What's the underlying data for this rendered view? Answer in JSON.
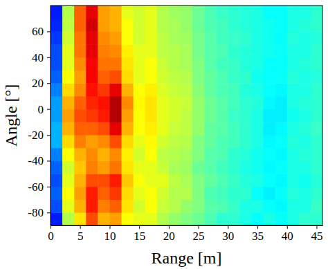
{
  "chart_data": {
    "type": "heatmap",
    "x_label": "Range [m]",
    "y_label": "Angle [°]",
    "xlim": [
      0,
      46
    ],
    "ylim": [
      -90,
      80
    ],
    "xticks": [
      0,
      5,
      10,
      15,
      20,
      25,
      30,
      35,
      40,
      45
    ],
    "yticks": [
      -80,
      -60,
      -40,
      -20,
      0,
      20,
      40,
      60
    ],
    "color": "jet",
    "zlim": [
      0,
      1
    ],
    "x_edges": [
      0,
      2,
      4,
      6,
      8,
      10,
      12,
      14,
      16,
      18,
      20,
      22,
      24,
      26,
      28,
      30,
      32,
      34,
      36,
      38,
      40,
      42,
      44,
      46
    ],
    "y_edges": [
      -90,
      -80,
      -70,
      -60,
      -50,
      -40,
      -30,
      -20,
      -10,
      0,
      10,
      20,
      30,
      40,
      50,
      60,
      70,
      80
    ],
    "cells": [
      [
        0.15,
        0.55,
        0.65,
        0.8,
        0.7,
        0.72,
        0.62,
        0.6,
        0.6,
        0.55,
        0.52,
        0.5,
        0.48,
        0.45,
        0.42,
        0.42,
        0.4,
        0.38,
        0.4,
        0.38,
        0.4,
        0.42,
        0.42
      ],
      [
        0.2,
        0.6,
        0.7,
        0.85,
        0.75,
        0.78,
        0.65,
        0.58,
        0.62,
        0.57,
        0.55,
        0.52,
        0.5,
        0.46,
        0.45,
        0.43,
        0.4,
        0.4,
        0.38,
        0.37,
        0.4,
        0.4,
        0.43
      ],
      [
        0.22,
        0.62,
        0.72,
        0.85,
        0.78,
        0.82,
        0.66,
        0.6,
        0.62,
        0.58,
        0.55,
        0.55,
        0.5,
        0.45,
        0.44,
        0.42,
        0.42,
        0.38,
        0.36,
        0.38,
        0.41,
        0.4,
        0.42
      ],
      [
        0.2,
        0.6,
        0.7,
        0.8,
        0.8,
        0.85,
        0.68,
        0.62,
        0.6,
        0.6,
        0.56,
        0.54,
        0.5,
        0.47,
        0.45,
        0.43,
        0.41,
        0.4,
        0.38,
        0.37,
        0.4,
        0.39,
        0.41
      ],
      [
        0.22,
        0.58,
        0.68,
        0.75,
        0.72,
        0.76,
        0.65,
        0.6,
        0.6,
        0.57,
        0.54,
        0.53,
        0.48,
        0.46,
        0.44,
        0.42,
        0.4,
        0.39,
        0.37,
        0.38,
        0.4,
        0.4,
        0.42
      ],
      [
        0.25,
        0.62,
        0.7,
        0.74,
        0.7,
        0.74,
        0.64,
        0.58,
        0.62,
        0.56,
        0.55,
        0.54,
        0.5,
        0.46,
        0.45,
        0.42,
        0.41,
        0.39,
        0.38,
        0.37,
        0.4,
        0.41,
        0.42
      ],
      [
        0.3,
        0.66,
        0.75,
        0.72,
        0.74,
        0.8,
        0.66,
        0.6,
        0.63,
        0.58,
        0.56,
        0.55,
        0.5,
        0.47,
        0.45,
        0.44,
        0.42,
        0.4,
        0.37,
        0.38,
        0.41,
        0.4,
        0.42
      ],
      [
        0.3,
        0.7,
        0.78,
        0.78,
        0.8,
        0.9,
        0.7,
        0.62,
        0.64,
        0.6,
        0.57,
        0.56,
        0.52,
        0.47,
        0.46,
        0.44,
        0.42,
        0.4,
        0.36,
        0.37,
        0.4,
        0.41,
        0.43
      ],
      [
        0.28,
        0.72,
        0.8,
        0.82,
        0.85,
        0.95,
        0.72,
        0.62,
        0.65,
        0.6,
        0.58,
        0.56,
        0.52,
        0.48,
        0.46,
        0.43,
        0.42,
        0.4,
        0.36,
        0.36,
        0.39,
        0.4,
        0.42
      ],
      [
        0.28,
        0.7,
        0.78,
        0.84,
        0.86,
        0.95,
        0.74,
        0.63,
        0.65,
        0.6,
        0.58,
        0.57,
        0.52,
        0.48,
        0.46,
        0.44,
        0.42,
        0.41,
        0.37,
        0.36,
        0.4,
        0.41,
        0.42
      ],
      [
        0.25,
        0.66,
        0.74,
        0.86,
        0.82,
        0.9,
        0.7,
        0.62,
        0.64,
        0.59,
        0.57,
        0.56,
        0.51,
        0.47,
        0.45,
        0.44,
        0.41,
        0.4,
        0.38,
        0.37,
        0.4,
        0.4,
        0.42
      ],
      [
        0.22,
        0.62,
        0.72,
        0.88,
        0.78,
        0.8,
        0.66,
        0.6,
        0.62,
        0.58,
        0.56,
        0.55,
        0.5,
        0.47,
        0.45,
        0.43,
        0.42,
        0.39,
        0.38,
        0.38,
        0.41,
        0.4,
        0.41
      ],
      [
        0.2,
        0.6,
        0.74,
        0.88,
        0.76,
        0.76,
        0.65,
        0.6,
        0.62,
        0.57,
        0.55,
        0.54,
        0.5,
        0.46,
        0.44,
        0.43,
        0.41,
        0.4,
        0.38,
        0.38,
        0.4,
        0.41,
        0.42
      ],
      [
        0.2,
        0.6,
        0.76,
        0.9,
        0.75,
        0.74,
        0.64,
        0.6,
        0.6,
        0.56,
        0.55,
        0.54,
        0.49,
        0.46,
        0.45,
        0.42,
        0.41,
        0.4,
        0.39,
        0.38,
        0.4,
        0.4,
        0.42
      ],
      [
        0.18,
        0.58,
        0.76,
        0.9,
        0.74,
        0.72,
        0.62,
        0.58,
        0.6,
        0.56,
        0.54,
        0.53,
        0.49,
        0.46,
        0.44,
        0.43,
        0.42,
        0.4,
        0.39,
        0.38,
        0.41,
        0.4,
        0.41
      ],
      [
        0.16,
        0.56,
        0.78,
        0.92,
        0.72,
        0.7,
        0.62,
        0.58,
        0.6,
        0.55,
        0.54,
        0.52,
        0.48,
        0.45,
        0.44,
        0.42,
        0.41,
        0.4,
        0.39,
        0.38,
        0.4,
        0.41,
        0.42
      ],
      [
        0.15,
        0.55,
        0.78,
        0.9,
        0.72,
        0.7,
        0.6,
        0.58,
        0.6,
        0.55,
        0.53,
        0.52,
        0.48,
        0.45,
        0.43,
        0.42,
        0.41,
        0.4,
        0.38,
        0.38,
        0.4,
        0.4,
        0.42
      ]
    ]
  }
}
